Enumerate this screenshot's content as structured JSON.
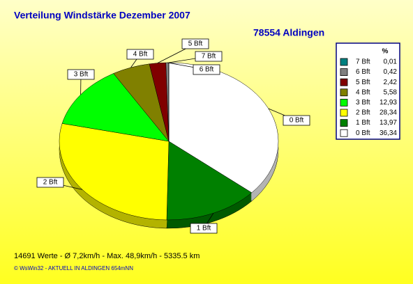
{
  "chart_data": {
    "type": "pie",
    "title": "Verteilung Windstärke  Dezember 2007",
    "subtitle": "78554 Aldingen",
    "categories": [
      "0 Bft",
      "1 Bft",
      "2 Bft",
      "3 Bft",
      "4 Bft",
      "5 Bft",
      "6 Bft",
      "7 Bft"
    ],
    "values": [
      36.34,
      13.97,
      28.34,
      12.93,
      5.58,
      2.42,
      0.42,
      0.01
    ],
    "value_labels": [
      "36,34",
      "13,97",
      "28,34",
      "12,93",
      "5,58",
      "2,42",
      "0,42",
      "0,01"
    ],
    "colors": [
      "#ffffff",
      "#008000",
      "#ffff00",
      "#00ff00",
      "#808000",
      "#800000",
      "#808080",
      "#008080"
    ],
    "legend_title": "%",
    "legend": "right"
  },
  "footer": {
    "stats": "14691 Werte   -   Ø 7,2km/h  -  Max. 48,9km/h  -   5335.5 km",
    "credit": "© WsWin32  -  AKTUELL IN ALDINGEN 654mNN"
  }
}
